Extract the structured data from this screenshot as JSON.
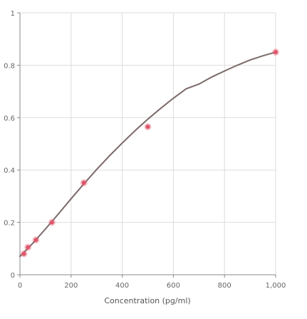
{
  "chart_data": {
    "type": "scatter",
    "title": "",
    "xlabel": "Concentration (pg/ml)",
    "ylabel": "",
    "xlim": [
      0,
      1000
    ],
    "ylim": [
      0,
      1
    ],
    "x_ticks": [
      0,
      200,
      400,
      600,
      800,
      1000
    ],
    "x_tick_labels": [
      "0",
      "200",
      "400",
      "600",
      "800",
      "1,000"
    ],
    "y_ticks": [
      0,
      0.2,
      0.4,
      0.6,
      0.8,
      1
    ],
    "y_tick_labels": [
      "0",
      "0.2",
      "0.4",
      "0.6",
      "0.8",
      "1"
    ],
    "grid": true,
    "series": [
      {
        "type": "scatter",
        "color": "#e0556a",
        "x": [
          15.6,
          31.25,
          62.5,
          125,
          250,
          500,
          1000
        ],
        "y": [
          0.08,
          0.105,
          0.133,
          0.2,
          0.351,
          0.565,
          0.85
        ]
      },
      {
        "type": "line",
        "color": "#7a6a68",
        "x": [
          0,
          50,
          100,
          150,
          200,
          250,
          300,
          350,
          400,
          450,
          500,
          550,
          600,
          650,
          700,
          750,
          800,
          850,
          900,
          950,
          1000
        ],
        "y": [
          0.07,
          0.12,
          0.175,
          0.232,
          0.29,
          0.347,
          0.402,
          0.454,
          0.503,
          0.55,
          0.594,
          0.635,
          0.674,
          0.71,
          0.728,
          0.755,
          0.778,
          0.8,
          0.82,
          0.836,
          0.85
        ]
      }
    ]
  }
}
